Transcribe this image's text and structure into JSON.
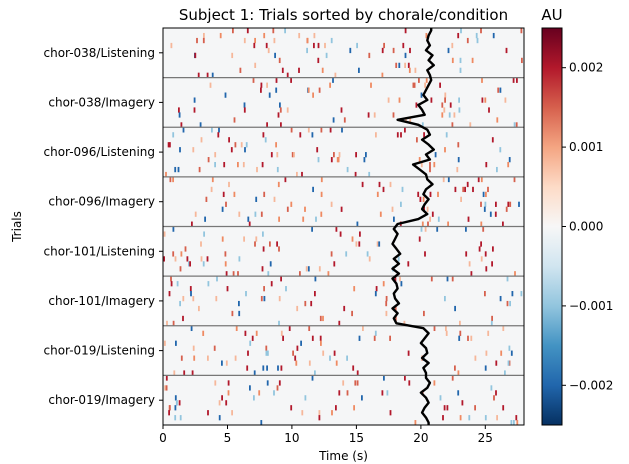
{
  "chart_data": {
    "type": "heatmap",
    "title": "Subject 1: Trials sorted by chorale/condition",
    "xlabel": "Time (s)",
    "ylabel": "Trials",
    "xlim": [
      0,
      28
    ],
    "x_ticks": [
      0,
      5,
      10,
      15,
      20,
      25
    ],
    "groups": [
      "chor-038/Listening",
      "chor-038/Imagery",
      "chor-096/Listening",
      "chor-096/Imagery",
      "chor-101/Listening",
      "chor-101/Imagery",
      "chor-019/Listening",
      "chor-019/Imagery"
    ],
    "trials_per_group": 10,
    "trial_marker_seconds": [
      20.8,
      20.6,
      20.5,
      20.7,
      20.4,
      20.9,
      20.6,
      21.0,
      20.5,
      20.7,
      20.8,
      20.6,
      20.4,
      20.2,
      20.5,
      19.8,
      20.1,
      20.3,
      18.2,
      19.8,
      20.5,
      20.7,
      20.1,
      20.6,
      21.0,
      20.4,
      20.7,
      19.4,
      19.9,
      20.4,
      20.5,
      20.9,
      20.4,
      20.2,
      20.6,
      20.3,
      20.1,
      20.5,
      19.8,
      18.2,
      17.9,
      18.2,
      18.0,
      17.8,
      18.1,
      18.4,
      17.9,
      18.3,
      17.8,
      18.3,
      17.8,
      18.1,
      18.2,
      17.9,
      18.0,
      18.3,
      17.8,
      18.2,
      17.9,
      18.1,
      20.2,
      20.6,
      20.3,
      20.0,
      20.4,
      20.5,
      20.1,
      20.6,
      20.2,
      20.4,
      20.4,
      20.7,
      20.5,
      20.0,
      20.4,
      20.6,
      20.3,
      20.1,
      20.4,
      20.6
    ],
    "colorbar": {
      "label": "AU",
      "range": [
        -0.0025,
        0.0025
      ],
      "ticks": [
        0.002,
        0.001,
        0.0,
        -0.001,
        -0.002
      ],
      "tick_labels": [
        "0.002",
        "0.001",
        "0.000",
        "−0.001",
        "−0.002"
      ],
      "colormap": "RdBu_r"
    },
    "grid": false,
    "colors": {
      "marker_line": "#000000",
      "separator": "#777777",
      "red": "#b2182b",
      "orange": "#ef8a62",
      "blue": "#2166ac"
    }
  }
}
